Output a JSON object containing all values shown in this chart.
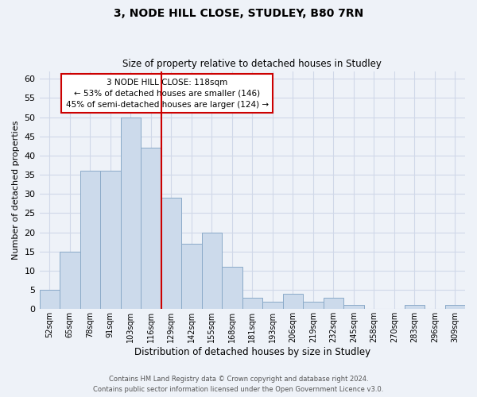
{
  "title": "3, NODE HILL CLOSE, STUDLEY, B80 7RN",
  "subtitle": "Size of property relative to detached houses in Studley",
  "xlabel": "Distribution of detached houses by size in Studley",
  "ylabel": "Number of detached properties",
  "bar_labels": [
    "52sqm",
    "65sqm",
    "78sqm",
    "91sqm",
    "103sqm",
    "116sqm",
    "129sqm",
    "142sqm",
    "155sqm",
    "168sqm",
    "181sqm",
    "193sqm",
    "206sqm",
    "219sqm",
    "232sqm",
    "245sqm",
    "258sqm",
    "270sqm",
    "283sqm",
    "296sqm",
    "309sqm"
  ],
  "bar_values": [
    5,
    15,
    36,
    36,
    50,
    42,
    29,
    17,
    20,
    11,
    3,
    2,
    4,
    2,
    3,
    1,
    0,
    0,
    1,
    0,
    1
  ],
  "bar_color": "#ccdaeb",
  "bar_edge_color": "#8aaac8",
  "vline_x": 5.5,
  "vline_color": "#cc0000",
  "annotation_line1": "3 NODE HILL CLOSE: 118sqm",
  "annotation_line2": "← 53% of detached houses are smaller (146)",
  "annotation_line3": "45% of semi-detached houses are larger (124) →",
  "ylim": [
    0,
    62
  ],
  "yticks": [
    0,
    5,
    10,
    15,
    20,
    25,
    30,
    35,
    40,
    45,
    50,
    55,
    60
  ],
  "grid_color": "#d0d8e8",
  "background_color": "#eef2f8",
  "footer_line1": "Contains HM Land Registry data © Crown copyright and database right 2024.",
  "footer_line2": "Contains public sector information licensed under the Open Government Licence v3.0."
}
